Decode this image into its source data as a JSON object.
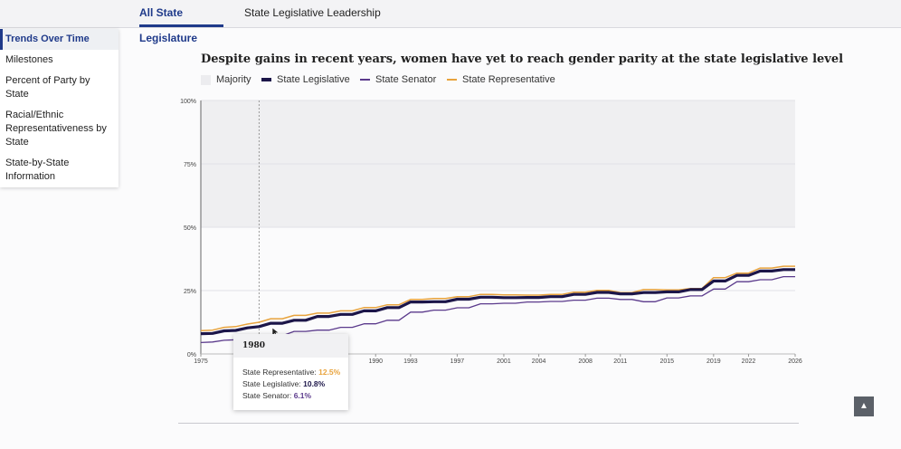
{
  "tabs": [
    {
      "label": "All State Legislature",
      "active": true
    },
    {
      "label": "State Legislative Leadership",
      "active": false
    }
  ],
  "sidebar": {
    "items": [
      {
        "label": "Trends Over Time",
        "active": true
      },
      {
        "label": "Milestones"
      },
      {
        "label": "Percent of Party by State"
      },
      {
        "label": "Racial/Ethnic Representativeness by State"
      },
      {
        "label": "State-by-State Information"
      }
    ]
  },
  "tooltip": {
    "year": "1980",
    "rows": [
      {
        "label": "State Representative: ",
        "value": "12.5%",
        "color": "#e8a33d"
      },
      {
        "label": "State Legislative: ",
        "value": "10.8%",
        "color": "#1c1649"
      },
      {
        "label": "State Senator: ",
        "value": "6.1%",
        "color": "#5b3a8c"
      }
    ]
  },
  "icons": {
    "back_to_top": "chevron-up-icon"
  },
  "chart_data": {
    "type": "line",
    "title": "Despite gains in recent years, women have yet to reach gender parity at the state legislative level",
    "legend": [
      {
        "name": "Majority",
        "color": "#ececef"
      },
      {
        "name": "State Legislative",
        "color": "#1c1649"
      },
      {
        "name": "State Senator",
        "color": "#5b3a8c"
      },
      {
        "name": "State Representative",
        "color": "#e8a33d"
      }
    ],
    "majority_band": [
      50,
      100
    ],
    "ylim": [
      0,
      100
    ],
    "yticks": [
      0,
      25,
      50,
      75,
      100
    ],
    "ytick_labels": [
      "0%",
      "25%",
      "50%",
      "75%",
      "100%"
    ],
    "xlim": [
      1975,
      2026
    ],
    "xticks": [
      1975,
      1990,
      1993,
      1997,
      2001,
      2004,
      2008,
      2011,
      2015,
      2019,
      2022,
      2026
    ],
    "hover_year": 1980,
    "grid": true,
    "x": [
      1975,
      1976,
      1977,
      1978,
      1979,
      1980,
      1981,
      1982,
      1983,
      1984,
      1985,
      1986,
      1987,
      1988,
      1989,
      1990,
      1991,
      1992,
      1993,
      1994,
      1995,
      1996,
      1997,
      1998,
      1999,
      2000,
      2001,
      2002,
      2003,
      2004,
      2005,
      2006,
      2007,
      2008,
      2009,
      2010,
      2011,
      2012,
      2013,
      2014,
      2015,
      2016,
      2017,
      2018,
      2019,
      2020,
      2021,
      2022,
      2023,
      2024,
      2025,
      2026
    ],
    "series": [
      {
        "name": "State Representative",
        "color": "#e8a33d",
        "values": [
          9.2,
          9.4,
          10.5,
          10.8,
          11.8,
          12.5,
          13.9,
          13.9,
          15.2,
          15.2,
          16.1,
          16.1,
          17.0,
          17.0,
          18.3,
          18.3,
          19.4,
          19.4,
          21.5,
          21.5,
          21.9,
          21.9,
          22.6,
          22.6,
          23.5,
          23.5,
          23.3,
          23.3,
          23.2,
          23.2,
          23.5,
          23.5,
          24.4,
          24.4,
          25.1,
          25.1,
          24.2,
          24.2,
          25.4,
          25.4,
          25.3,
          25.3,
          25.8,
          25.8,
          30.1,
          30.1,
          31.9,
          31.9,
          33.9,
          33.9,
          34.6,
          34.6
        ]
      },
      {
        "name": "State Legislative",
        "color": "#1c1649",
        "values": [
          8.0,
          8.1,
          9.1,
          9.3,
          10.3,
          10.8,
          12.1,
          12.1,
          13.3,
          13.3,
          14.8,
          14.8,
          15.6,
          15.6,
          17.0,
          17.0,
          18.3,
          18.3,
          20.5,
          20.5,
          20.6,
          20.6,
          21.6,
          21.6,
          22.4,
          22.4,
          22.2,
          22.2,
          22.3,
          22.3,
          22.6,
          22.6,
          23.5,
          23.5,
          24.3,
          24.3,
          23.7,
          23.7,
          24.2,
          24.2,
          24.5,
          24.5,
          25.4,
          25.4,
          28.8,
          28.8,
          31.0,
          31.0,
          32.7,
          32.7,
          33.3,
          33.3
        ]
      },
      {
        "name": "State Senator",
        "color": "#5b3a8c",
        "values": [
          4.5,
          4.7,
          5.4,
          5.6,
          5.9,
          6.1,
          7.2,
          7.2,
          8.9,
          8.9,
          9.4,
          9.4,
          10.5,
          10.5,
          11.9,
          11.9,
          13.3,
          13.3,
          16.5,
          16.5,
          17.3,
          17.3,
          18.2,
          18.2,
          19.8,
          19.8,
          20.0,
          20.0,
          20.5,
          20.5,
          20.7,
          20.7,
          21.2,
          21.2,
          22.0,
          22.0,
          21.5,
          21.5,
          20.6,
          20.6,
          22.1,
          22.1,
          22.9,
          22.9,
          25.6,
          25.6,
          28.5,
          28.5,
          29.3,
          29.3,
          30.5,
          30.5
        ]
      }
    ]
  }
}
